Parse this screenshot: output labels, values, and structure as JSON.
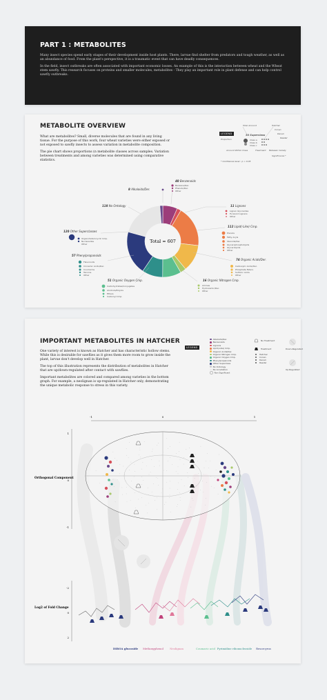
{
  "part1": {
    "title": "PART 1 : METABOLITES",
    "p1": "Many insect species spend early stages of their development inside host plants. There, larvae find shelter from predators and tough weather, as well as an abundance of food. From the plant's perspective, it is a traumatic event that can have deadly consequences.",
    "p2": "In the field, insect outbreaks are often associated with important economic losses. An example of this is the interaction between wheat and the Wheat stem sawfly. This research focuses on proteins and smaller molecules, metabolites - They play an important role in plant defense and can help control sawfly outbreaks."
  },
  "overview": {
    "title": "METABOLITE OVERVIEW",
    "p1": "What are metabolites? Small, diverse molecules that are found in any living tissue. For the purpose of this work, four wheat varieties were either exposed or not exposed to sawfly insects to assess variation in metabolite composition.",
    "p2": "The pie chart shows proportions (n metabolite classes across samples. Variation between treatments and among varieties was determined using comparative statistics.",
    "legend": {
      "chip": "LEGEND",
      "total_amount": "Total Amount",
      "hatcher": "Hatcher",
      "conan": "Conan",
      "denali": "Denali",
      "reeder": "Reeder",
      "proportion": "Proportion",
      "superclass": "30 Superclass",
      "class_a": "Class a",
      "class_b": "Class b",
      "class_c": "Class c",
      "amount_within": "Amount Within Class",
      "treatment": "Treatment",
      "between": "Between Variety",
      "significance": "Significance *",
      "ci": "* Confidence level : p < 0.05"
    }
  },
  "donut": {
    "total_label": "Total = 607"
  },
  "chart_data": {
    "type": "pie",
    "title": "",
    "total": 607,
    "slices": [
      {
        "label": "Benzenoids",
        "value": 40,
        "color": "#9c3d7a"
      },
      {
        "label": "Lignans",
        "value": 11,
        "color": "#d64f5a"
      },
      {
        "label": "Lipid(-Like) Cmp.",
        "value": 112,
        "color": "#ec7c46"
      },
      {
        "label": "Organic Acids/Der.",
        "value": 74,
        "color": "#f0b84a"
      },
      {
        "label": "Organic Nitrogen Cmp.",
        "value": 16,
        "color": "#a8c968"
      },
      {
        "label": "Organic Oxygen Cmp.",
        "value": 51,
        "color": "#5bbf8f"
      },
      {
        "label": "Phenylpropanoids",
        "value": 57,
        "color": "#2e8f8a"
      },
      {
        "label": "Other Superclasses",
        "value": 120,
        "color": "#2b3a7d"
      },
      {
        "label": "No Ontology",
        "value": 118,
        "color": "#e6e6e6"
      },
      {
        "label": "Alkaloids/Der.",
        "value": 8,
        "color": "#6a4a8c"
      }
    ]
  },
  "callouts": {
    "benzenoids": {
      "count": "40",
      "name": "Benzenoids",
      "items": [
        "Benzene/Der.",
        "Phenols/Der.",
        "Other"
      ]
    },
    "lignans": {
      "count": "11",
      "name": "Lignans",
      "items": [
        "Lignan Glycosides",
        "Furanoid Lignans",
        "Other"
      ]
    },
    "lipid": {
      "count": "112",
      "name": "Lipid(-Like) Cmp.",
      "items": [
        "Prenols",
        "Fatty Acyls",
        "Steroids/Der.",
        "Glycerophospholipids",
        "Glycerolipids",
        "Other"
      ]
    },
    "acids": {
      "count": "74",
      "name": "Organic Acids/Der.",
      "items": [
        "Carboxylic Acids/Der.",
        "Phosphate Esters",
        "Sulfonic Acids",
        "Other"
      ]
    },
    "nitrogen": {
      "count": "16",
      "name": "Organic Nitrogen Cmp.",
      "items": [
        "Amines",
        "Hydroxamic/Der.",
        "Other"
      ]
    },
    "oxygen": {
      "count": "51",
      "name": "Organic Oxygen Cmp.",
      "items": [
        "Carbohydrates/Conjugates",
        "Alcohols/Polyols",
        "Ethers",
        "Carbonyl Cmp."
      ]
    },
    "phenyl": {
      "count": "57",
      "name": "Phenylpropanoids",
      "items": [
        "Flavonoids",
        "Cinnamic Acids/Der.",
        "Coumarins",
        "Tannins",
        "Other"
      ]
    },
    "other": {
      "count": "120",
      "name": "Other Superclasses",
      "items": [
        "Organoheterocyclic Cmp.",
        "Nucleosides",
        "Other"
      ]
    },
    "noont": {
      "count": "118",
      "name": "No Ontology"
    },
    "alkaloids": {
      "count": "8",
      "name": "Alkaloids/Der."
    }
  },
  "hatcher": {
    "title": "IMPORTANT METABOLITES IN HATCHER",
    "p1": "One variety of interest is known as Hatcher and has characteristic hollow stems. While this is desirable for sawflies as it gives them more room to grow inside the plant, larvae don't develop well in Hatcher.",
    "p2": "The top of this illustration represents the distribution of metabolites in Hatcher that are up/down-regulated after contact with sawflies.",
    "p3": "Important metabolites are colored and compared among varieties in the bottom graph. For example, a neolignan is up-regulated in Hatcher only, demonstrating the unique metabolic response to stress in this variety.",
    "legend_chip": "LEGEND",
    "legend_items": [
      "Alkaloids/Der.",
      "Benzenoids",
      "Lignans",
      "Lipid(-Like) Cmp.",
      "Organic Acids/Der.",
      "Organic Nitrogen Cmp.",
      "Organic Oxygen Cmp.",
      "Phenylpropanoids",
      "Other Superclass",
      "No Ontology",
      "No Annotation",
      "Non Significant"
    ],
    "legend_right": {
      "no_treatment": "No Treatment",
      "treatment": "Treatment",
      "hatcher": "Hatcher",
      "conan": "Conan",
      "denali": "Denali",
      "reeder": "Reeder",
      "down": "Down-Regulated",
      "up": "Up-Regulated"
    },
    "axis_ticks_top": [
      "-1",
      "0",
      "1"
    ],
    "y_ticks_top": [
      "1",
      "0",
      "-1"
    ],
    "y_ticks_bottom": [
      "-2",
      "0",
      "2"
    ],
    "ortho_label": "Orthogonal Component",
    "fold_label": "Log2 of Fold Change",
    "compounds": [
      {
        "name": "DIBOA glucoside",
        "color": "#2b3a7d"
      },
      {
        "name": "Methoxyphenol",
        "color": "#c0427b"
      },
      {
        "name": "Neolignan",
        "color": "#e0789a"
      },
      {
        "name": "Coumaric acid",
        "color": "#5bbf8f"
      },
      {
        "name": "Pyrimidine ribonucleoside",
        "color": "#2e8f8a"
      },
      {
        "name": "Resorcyrus",
        "color": "#2b3a7d"
      }
    ]
  }
}
